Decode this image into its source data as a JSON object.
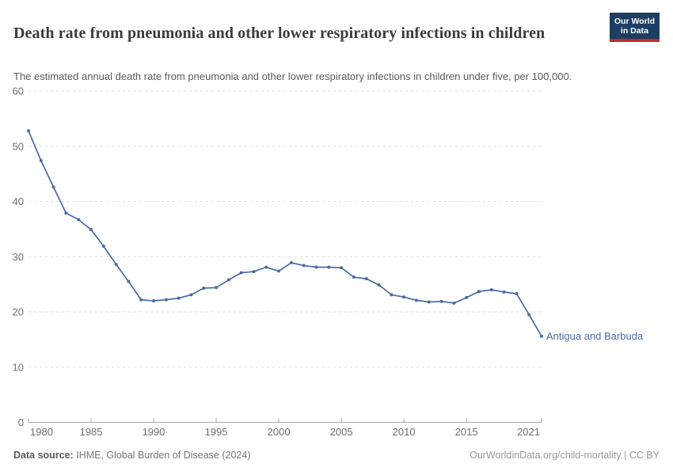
{
  "header": {
    "title": "Death rate from pneumonia and other lower respiratory infections in children",
    "subtitle": "The estimated annual death rate from pneumonia and other lower respiratory infections in children under five, per 100,000.",
    "logo": {
      "line1": "Our World",
      "line2": "in Data"
    }
  },
  "chart_data": {
    "type": "line",
    "title": "Death rate from pneumonia and other lower respiratory infections in children",
    "x": [
      1980,
      1981,
      1982,
      1983,
      1984,
      1985,
      1986,
      1987,
      1988,
      1989,
      1990,
      1991,
      1992,
      1993,
      1994,
      1995,
      1996,
      1997,
      1998,
      1999,
      2000,
      2001,
      2002,
      2003,
      2004,
      2005,
      2006,
      2007,
      2008,
      2009,
      2010,
      2011,
      2012,
      2013,
      2014,
      2015,
      2016,
      2017,
      2018,
      2019,
      2020,
      2021
    ],
    "series": [
      {
        "name": "Antigua and Barbuda",
        "values": [
          52.8,
          47.4,
          42.6,
          37.9,
          36.7,
          34.9,
          31.9,
          28.6,
          25.5,
          22.2,
          22.0,
          22.2,
          22.5,
          23.1,
          24.3,
          24.4,
          25.8,
          27.1,
          27.3,
          28.1,
          27.4,
          28.9,
          28.4,
          28.1,
          28.1,
          28.0,
          26.3,
          26.0,
          24.9,
          23.1,
          22.7,
          22.1,
          21.8,
          21.9,
          21.6,
          22.6,
          23.7,
          24.0,
          23.6,
          23.3,
          19.5,
          15.6
        ]
      }
    ],
    "xlim": [
      1980,
      2021
    ],
    "ylim": [
      0,
      60
    ],
    "yticks": [
      0,
      10,
      20,
      30,
      40,
      50,
      60
    ],
    "xticks": [
      1980,
      1985,
      1990,
      1995,
      2000,
      2005,
      2010,
      2015,
      2021
    ],
    "grid": "horizontal-dashed",
    "legend_position": "line-end-label"
  },
  "colors": {
    "line": "#4a6ba5",
    "entity_label": "#4a6ba5",
    "grid": "#dcdcdc",
    "axis": "#a5a5a5",
    "tick_label": "#6e6e6e",
    "title": "#3b3b3b",
    "subtitle": "#5b5b5b",
    "logo_bg": "#1d3d63",
    "logo_red": "#bc2f28"
  },
  "footer": {
    "source_label": "Data source:",
    "source_value": "IHME, Global Burden of Disease (2024)",
    "rights": "OurWorldinData.org/child-mortality | CC BY"
  }
}
